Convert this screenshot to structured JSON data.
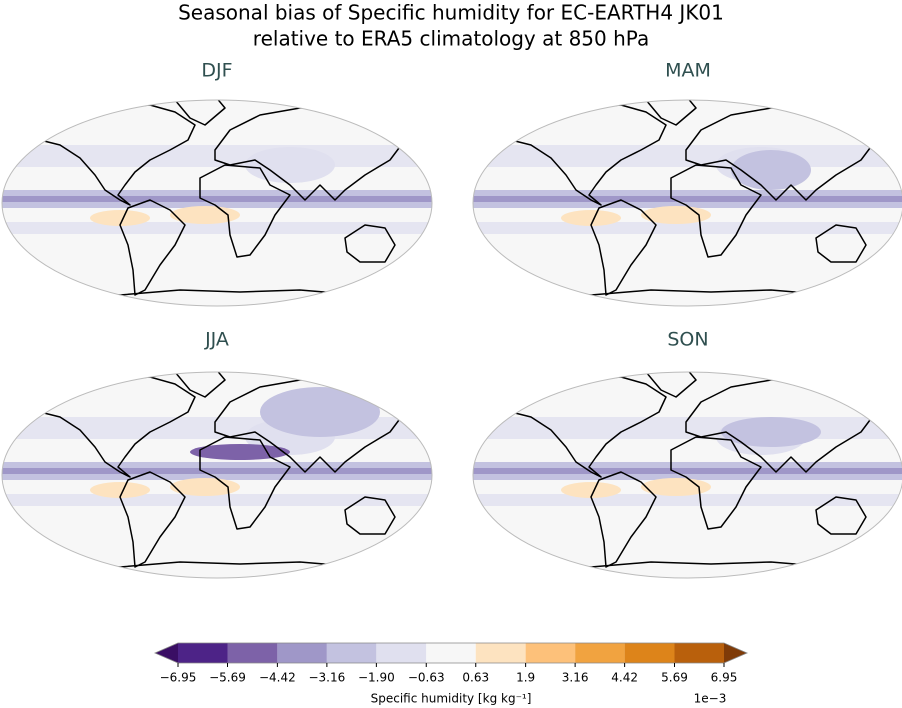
{
  "chart_data": {
    "type": "map",
    "title": [
      "Seasonal bias of Specific humidity for EC-EARTH4 JK01",
      "relative to ERA5 climatology at 850 hPa"
    ],
    "panels": [
      {
        "title": "DJF"
      },
      {
        "title": "MAM"
      },
      {
        "title": "JJA"
      },
      {
        "title": "SON"
      }
    ],
    "colorbar": {
      "label": "Specific humidity [kg kg⁻¹]",
      "offset_label": "1e−3",
      "ticks": [
        {
          "value": -6.95,
          "label": "−6.95"
        },
        {
          "value": -5.69,
          "label": "−5.69"
        },
        {
          "value": -4.42,
          "label": "−4.42"
        },
        {
          "value": -3.16,
          "label": "−3.16"
        },
        {
          "value": -1.9,
          "label": "−1.90"
        },
        {
          "value": -0.63,
          "label": "−0.63"
        },
        0.63,
        1.9,
        3.16,
        4.42,
        5.69,
        6.95
      ],
      "colors": [
        "#4d2387",
        "#7d62a8",
        "#9f97c8",
        "#c3c2e0",
        "#e0e0ef",
        "#f7f7f7",
        "#fde3c0",
        "#fdc17a",
        "#f1a340",
        "#dd841a",
        "#b9600c"
      ],
      "under_color": "#3a0e64",
      "over_color": "#7f3b08"
    }
  }
}
